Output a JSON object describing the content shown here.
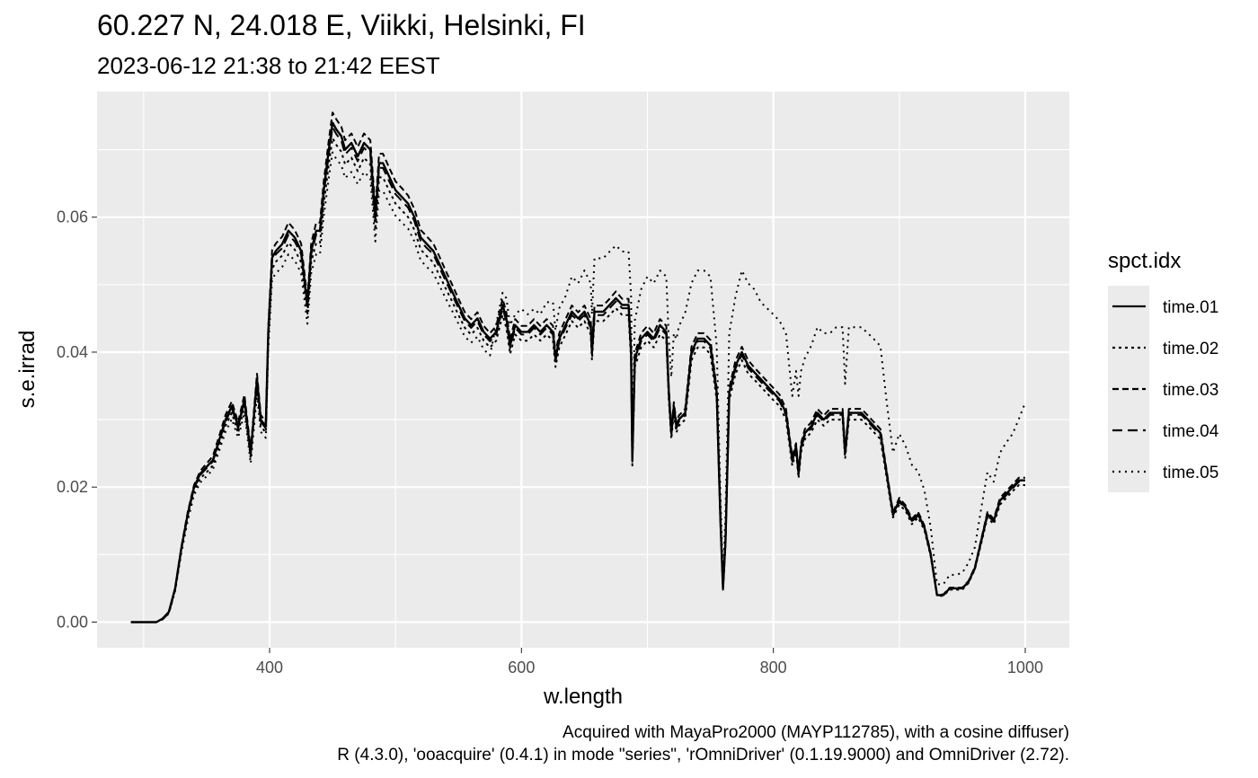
{
  "chart_data": {
    "type": "line",
    "title": "60.227  N, 24.018  E, Viikki, Helsinki, FI",
    "subtitle": "2023-06-12 21:38 to 21:42 EEST",
    "xlabel": "w.length",
    "ylabel": "s.e.irrad",
    "xlim": [
      263,
      1035
    ],
    "ylim": [
      -0.0038,
      0.0786
    ],
    "x_ticks": [
      400,
      600,
      800,
      1000
    ],
    "x_tick_labels": [
      "400",
      "600",
      "800",
      "1000"
    ],
    "y_ticks": [
      0.0,
      0.02,
      0.04,
      0.06
    ],
    "y_tick_labels": [
      "0.00",
      "0.02",
      "0.04",
      "0.06"
    ],
    "grid": true,
    "legend": {
      "title": "spct.idx",
      "position": "right"
    },
    "caption": [
      "Acquired with MayaPro2000 (MAYP112785), with a cosine diffuser)",
      "R (4.3.0), 'ooacquire' (0.4.1) in mode \"series\", 'rOmniDriver' (0.1.19.9000) and OmniDriver (2.72)."
    ],
    "base_x": [
      290,
      300,
      310,
      315,
      320,
      325,
      330,
      335,
      340,
      345,
      350,
      355,
      360,
      365,
      370,
      375,
      380,
      385,
      390,
      393,
      397,
      399,
      402,
      405,
      410,
      415,
      420,
      425,
      430,
      433,
      437,
      440,
      443,
      447,
      450,
      453,
      457,
      460,
      465,
      470,
      475,
      480,
      484,
      487,
      490,
      495,
      500,
      505,
      510,
      515,
      520,
      525,
      530,
      535,
      540,
      545,
      550,
      555,
      560,
      565,
      570,
      575,
      580,
      585,
      588,
      591,
      595,
      600,
      605,
      610,
      615,
      620,
      625,
      627,
      630,
      635,
      640,
      645,
      650,
      655,
      656,
      658,
      660,
      665,
      670,
      675,
      680,
      685,
      687,
      688,
      690,
      695,
      700,
      705,
      710,
      715,
      717,
      719,
      721,
      723,
      725,
      730,
      735,
      740,
      745,
      750,
      755,
      758,
      760,
      762,
      765,
      770,
      775,
      780,
      785,
      790,
      795,
      800,
      805,
      810,
      815,
      818,
      820,
      822,
      825,
      830,
      835,
      840,
      845,
      850,
      855,
      857,
      860,
      865,
      870,
      875,
      880,
      885,
      890,
      895,
      900,
      905,
      910,
      915,
      920,
      925,
      930,
      935,
      940,
      945,
      950,
      955,
      960,
      965,
      970,
      975,
      980,
      985,
      990,
      995,
      1000
    ],
    "series": [
      {
        "name": "time.01",
        "dash": "solid",
        "width": 2.4,
        "values": [
          0,
          0,
          0,
          0.0005,
          0.0015,
          0.005,
          0.011,
          0.016,
          0.02,
          0.022,
          0.023,
          0.024,
          0.027,
          0.03,
          0.032,
          0.029,
          0.033,
          0.025,
          0.036,
          0.03,
          0.029,
          0.043,
          0.054,
          0.055,
          0.056,
          0.058,
          0.057,
          0.055,
          0.047,
          0.055,
          0.058,
          0.058,
          0.064,
          0.07,
          0.074,
          0.073,
          0.072,
          0.07,
          0.071,
          0.069,
          0.071,
          0.07,
          0.06,
          0.068,
          0.068,
          0.066,
          0.064,
          0.063,
          0.062,
          0.06,
          0.057,
          0.056,
          0.055,
          0.053,
          0.051,
          0.049,
          0.047,
          0.045,
          0.044,
          0.045,
          0.043,
          0.042,
          0.043,
          0.047,
          0.045,
          0.041,
          0.044,
          0.043,
          0.043,
          0.044,
          0.043,
          0.044,
          0.043,
          0.039,
          0.042,
          0.044,
          0.046,
          0.045,
          0.046,
          0.044,
          0.04,
          0.046,
          0.046,
          0.046,
          0.047,
          0.048,
          0.047,
          0.047,
          0.04,
          0.024,
          0.039,
          0.042,
          0.043,
          0.042,
          0.044,
          0.043,
          0.034,
          0.028,
          0.032,
          0.029,
          0.03,
          0.031,
          0.04,
          0.042,
          0.042,
          0.041,
          0.034,
          0.015,
          0.005,
          0.012,
          0.034,
          0.038,
          0.04,
          0.038,
          0.037,
          0.036,
          0.035,
          0.034,
          0.033,
          0.031,
          0.024,
          0.026,
          0.022,
          0.026,
          0.028,
          0.029,
          0.031,
          0.03,
          0.031,
          0.031,
          0.031,
          0.025,
          0.031,
          0.031,
          0.031,
          0.03,
          0.029,
          0.028,
          0.022,
          0.016,
          0.018,
          0.017,
          0.015,
          0.016,
          0.014,
          0.01,
          0.004,
          0.004,
          0.005,
          0.005,
          0.005,
          0.006,
          0.008,
          0.012,
          0.016,
          0.015,
          0.018,
          0.019,
          0.02,
          0.021,
          0.021
        ]
      },
      {
        "name": "time.02",
        "dash": "3,4",
        "width": 2.0,
        "values": [
          0,
          0,
          0,
          0.0004,
          0.0013,
          0.0047,
          0.0106,
          0.0155,
          0.0194,
          0.0213,
          0.0222,
          0.0232,
          0.0261,
          0.0291,
          0.031,
          0.028,
          0.032,
          0.0242,
          0.0349,
          0.029,
          0.0281,
          0.0417,
          0.0523,
          0.0534,
          0.0543,
          0.0562,
          0.0552,
          0.0533,
          0.0455,
          0.0533,
          0.0562,
          0.0562,
          0.062,
          0.0678,
          0.0717,
          0.0707,
          0.0697,
          0.0678,
          0.0688,
          0.0668,
          0.0688,
          0.0678,
          0.0581,
          0.0659,
          0.0659,
          0.0639,
          0.062,
          0.061,
          0.06,
          0.0581,
          0.0552,
          0.0542,
          0.0533,
          0.0513,
          0.0494,
          0.0475,
          0.0455,
          0.0436,
          0.0426,
          0.0436,
          0.0417,
          0.0407,
          0.0417,
          0.0455,
          0.0436,
          0.0397,
          0.0426,
          0.0417,
          0.0417,
          0.0426,
          0.0417,
          0.0426,
          0.0417,
          0.0378,
          0.0407,
          0.0426,
          0.0446,
          0.0436,
          0.0446,
          0.0426,
          0.0388,
          0.0446,
          0.0446,
          0.0446,
          0.0455,
          0.0465,
          0.0455,
          0.0455,
          0.0388,
          0.0232,
          0.0378,
          0.0407,
          0.0417,
          0.0407,
          0.0426,
          0.0417,
          0.0329,
          0.0271,
          0.031,
          0.0281,
          0.0291,
          0.03,
          0.0388,
          0.0407,
          0.0407,
          0.0397,
          0.0329,
          0.0145,
          0.0048,
          0.0116,
          0.0329,
          0.0368,
          0.0388,
          0.0368,
          0.0359,
          0.0349,
          0.0339,
          0.0329,
          0.032,
          0.03,
          0.0232,
          0.0252,
          0.0213,
          0.0252,
          0.0271,
          0.0281,
          0.03,
          0.0291,
          0.03,
          0.03,
          0.03,
          0.0242,
          0.03,
          0.03,
          0.03,
          0.0291,
          0.0281,
          0.0271,
          0.0213,
          0.0155,
          0.0174,
          0.0165,
          0.0145,
          0.0155,
          0.0136,
          0.0097,
          0.0039,
          0.0039,
          0.0048,
          0.0048,
          0.0048,
          0.0058,
          0.0078,
          0.0116,
          0.0155,
          0.0145,
          0.0174,
          0.0184,
          0.0194,
          0.0203,
          0.0203
        ]
      },
      {
        "name": "time.03",
        "dash": "7,4",
        "width": 2.0,
        "values": [
          0,
          0,
          0,
          0.0005,
          0.0015,
          0.005,
          0.0112,
          0.0163,
          0.0203,
          0.0224,
          0.0235,
          0.0246,
          0.0276,
          0.0307,
          0.0327,
          0.0296,
          0.0337,
          0.0256,
          0.0368,
          0.0307,
          0.0296,
          0.0438,
          0.0551,
          0.0561,
          0.0571,
          0.0592,
          0.0581,
          0.0561,
          0.0479,
          0.0561,
          0.0592,
          0.0592,
          0.0653,
          0.0714,
          0.0755,
          0.0745,
          0.0734,
          0.0714,
          0.0724,
          0.0704,
          0.0724,
          0.0714,
          0.0612,
          0.0694,
          0.0694,
          0.0673,
          0.0653,
          0.0643,
          0.0632,
          0.0612,
          0.0581,
          0.0571,
          0.0561,
          0.0541,
          0.052,
          0.05,
          0.0479,
          0.0459,
          0.0449,
          0.0459,
          0.0439,
          0.0428,
          0.0439,
          0.0479,
          0.0459,
          0.0418,
          0.0449,
          0.0439,
          0.0439,
          0.0449,
          0.0439,
          0.0449,
          0.0439,
          0.0398,
          0.0428,
          0.0449,
          0.0469,
          0.0459,
          0.0469,
          0.0449,
          0.0408,
          0.0469,
          0.0469,
          0.0469,
          0.0479,
          0.049,
          0.0479,
          0.0479,
          0.0408,
          0.0245,
          0.0398,
          0.0428,
          0.0439,
          0.0428,
          0.0449,
          0.0439,
          0.0347,
          0.0286,
          0.0326,
          0.0296,
          0.0306,
          0.0316,
          0.0408,
          0.0428,
          0.0428,
          0.0418,
          0.0347,
          0.0153,
          0.0051,
          0.0122,
          0.0347,
          0.0388,
          0.0408,
          0.0388,
          0.0377,
          0.0367,
          0.0357,
          0.0347,
          0.0337,
          0.0316,
          0.0245,
          0.0265,
          0.0224,
          0.0265,
          0.0286,
          0.0296,
          0.0316,
          0.0306,
          0.0316,
          0.0316,
          0.0316,
          0.0255,
          0.0316,
          0.0316,
          0.0316,
          0.0306,
          0.0296,
          0.0286,
          0.0224,
          0.0163,
          0.0184,
          0.0173,
          0.0153,
          0.0163,
          0.0143,
          0.0102,
          0.0041,
          0.0041,
          0.0051,
          0.0051,
          0.0051,
          0.0061,
          0.0082,
          0.0122,
          0.0163,
          0.0153,
          0.0184,
          0.0194,
          0.0204,
          0.0214,
          0.0214
        ]
      },
      {
        "name": "time.04",
        "dash": "11,6",
        "width": 2.0,
        "values": [
          0,
          0,
          0,
          0.0004,
          0.0013,
          0.0048,
          0.0108,
          0.0158,
          0.0198,
          0.0218,
          0.0228,
          0.0238,
          0.0268,
          0.0297,
          0.0317,
          0.0287,
          0.0327,
          0.0248,
          0.0356,
          0.0297,
          0.0287,
          0.0426,
          0.0535,
          0.0545,
          0.0554,
          0.0574,
          0.0564,
          0.0545,
          0.0465,
          0.0545,
          0.0574,
          0.0574,
          0.0634,
          0.0693,
          0.0733,
          0.0723,
          0.0713,
          0.0693,
          0.0703,
          0.0683,
          0.0703,
          0.0693,
          0.0594,
          0.0673,
          0.0673,
          0.0653,
          0.0634,
          0.0624,
          0.0614,
          0.0594,
          0.0564,
          0.0554,
          0.0545,
          0.0525,
          0.0505,
          0.0485,
          0.0465,
          0.0446,
          0.0436,
          0.0446,
          0.0426,
          0.0416,
          0.0426,
          0.0465,
          0.0446,
          0.0406,
          0.0436,
          0.0426,
          0.0426,
          0.0436,
          0.0426,
          0.0436,
          0.0426,
          0.0386,
          0.0416,
          0.0436,
          0.0455,
          0.0446,
          0.0455,
          0.0436,
          0.0396,
          0.0455,
          0.0455,
          0.0455,
          0.0465,
          0.0475,
          0.0465,
          0.0465,
          0.0396,
          0.0238,
          0.0386,
          0.0416,
          0.0426,
          0.0416,
          0.0436,
          0.0426,
          0.0337,
          0.0277,
          0.0317,
          0.0287,
          0.0297,
          0.0307,
          0.0396,
          0.0416,
          0.0416,
          0.0406,
          0.0337,
          0.0149,
          0.005,
          0.0119,
          0.0337,
          0.0376,
          0.0396,
          0.0376,
          0.0366,
          0.0356,
          0.0346,
          0.0337,
          0.0327,
          0.0307,
          0.0238,
          0.0257,
          0.0218,
          0.0257,
          0.0277,
          0.0287,
          0.0307,
          0.0297,
          0.0307,
          0.0307,
          0.0307,
          0.0248,
          0.0307,
          0.0307,
          0.0307,
          0.0297,
          0.0287,
          0.0277,
          0.0218,
          0.0158,
          0.0178,
          0.0168,
          0.0149,
          0.0158,
          0.0139,
          0.0099,
          0.004,
          0.004,
          0.005,
          0.005,
          0.005,
          0.0059,
          0.0079,
          0.0119,
          0.0158,
          0.0149,
          0.0178,
          0.0188,
          0.0198,
          0.0208,
          0.0208
        ]
      },
      {
        "name": "time.05",
        "dash": "2,5",
        "width": 2.0,
        "values": [
          0,
          0,
          0,
          0.0004,
          0.0013,
          0.0046,
          0.0103,
          0.015,
          0.0188,
          0.0207,
          0.0216,
          0.0226,
          0.0254,
          0.0282,
          0.0301,
          0.0273,
          0.031,
          0.0235,
          0.0338,
          0.0282,
          0.0273,
          0.0404,
          0.0508,
          0.0517,
          0.0526,
          0.0545,
          0.0536,
          0.0517,
          0.0442,
          0.0517,
          0.0545,
          0.0545,
          0.0602,
          0.0658,
          0.0696,
          0.0686,
          0.0677,
          0.0658,
          0.0667,
          0.0649,
          0.0667,
          0.0658,
          0.0564,
          0.0639,
          0.0639,
          0.062,
          0.0602,
          0.0592,
          0.0583,
          0.0564,
          0.0536,
          0.0526,
          0.0517,
          0.0498,
          0.0479,
          0.0461,
          0.0442,
          0.0423,
          0.0414,
          0.0423,
          0.0404,
          0.0395,
          0.0442,
          0.0488,
          0.048,
          0.044,
          0.0456,
          0.0464,
          0.0456,
          0.0464,
          0.0456,
          0.0474,
          0.0474,
          0.0432,
          0.0465,
          0.0483,
          0.0512,
          0.0502,
          0.0521,
          0.0502,
          0.0456,
          0.0539,
          0.0539,
          0.0539,
          0.0549,
          0.0558,
          0.0549,
          0.0549,
          0.0484,
          0.0279,
          0.0447,
          0.0493,
          0.0512,
          0.0502,
          0.0521,
          0.0512,
          0.0419,
          0.0363,
          0.0428,
          0.0419,
          0.0438,
          0.0458,
          0.0502,
          0.0521,
          0.0521,
          0.0512,
          0.0409,
          0.0186,
          0.0065,
          0.0158,
          0.0428,
          0.0483,
          0.0521,
          0.0502,
          0.0493,
          0.0474,
          0.0465,
          0.0456,
          0.0446,
          0.0428,
          0.0335,
          0.0372,
          0.0335,
          0.0372,
          0.0391,
          0.0409,
          0.0437,
          0.0428,
          0.0428,
          0.0437,
          0.0437,
          0.0353,
          0.0437,
          0.0437,
          0.0437,
          0.0428,
          0.0419,
          0.0409,
          0.0326,
          0.0251,
          0.0279,
          0.0261,
          0.0233,
          0.0223,
          0.0195,
          0.014,
          0.0056,
          0.0056,
          0.007,
          0.007,
          0.0073,
          0.0088,
          0.0111,
          0.0168,
          0.0222,
          0.0208,
          0.0251,
          0.0266,
          0.0279,
          0.0301,
          0.0325
        ]
      }
    ]
  }
}
